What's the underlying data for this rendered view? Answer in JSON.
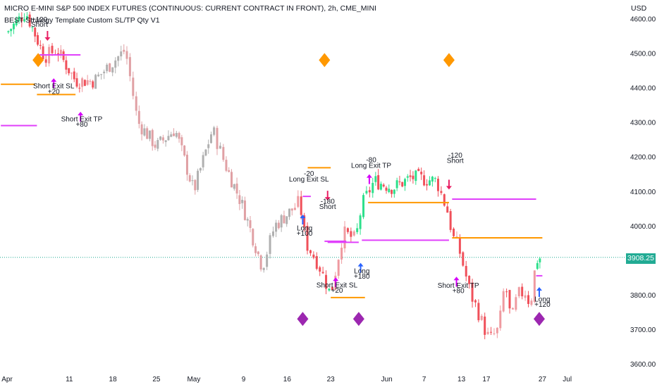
{
  "header": {
    "title": "MICRO E-MINI S&P 500 INDEX FUTURES (CONTINUOUS: CURRENT CONTRACT IN FRONT), 2h, CME_MINI",
    "subtitle": "BEST Strategy Template Custom SL/TP Qty V1",
    "currency": "USD",
    "last_price": "3908.25"
  },
  "colors": {
    "up": "#2ee08c",
    "down": "#f0505a",
    "neutral": "#c8b4b4",
    "sl_line": "#ff9800",
    "tp_line": "#e040fb",
    "entry_arrow_long": "#2962ff",
    "exit_arrow": "#d500f9",
    "short_arrow": "#e91e63",
    "orange_diamond": "#ff9800",
    "purple_diamond": "#9c27b0",
    "price_line": "#22ab94"
  },
  "chart_data": {
    "type": "candlestick",
    "title": "MICRO E-MINI S&P 500 INDEX FUTURES (CONTINUOUS: CURRENT CONTRACT IN FRONT), 2h, CME_MINI",
    "ylim": [
      3580,
      4640
    ],
    "y_ticks": [
      3600,
      3700,
      3800,
      3900,
      4000,
      4100,
      4200,
      4300,
      4400,
      4500,
      4600
    ],
    "y_tick_labels": [
      "3600.00",
      "3700.00",
      "3800.00",
      "3900.00",
      "4000.00",
      "4100.00",
      "4200.00",
      "4300.00",
      "4400.00",
      "4500.00",
      "4600.00"
    ],
    "x_ticks": [
      {
        "day": 0,
        "label": "Apr"
      },
      {
        "day": 10,
        "label": "11"
      },
      {
        "day": 17,
        "label": "18"
      },
      {
        "day": 24,
        "label": "25"
      },
      {
        "day": 30,
        "label": "May"
      },
      {
        "day": 38,
        "label": "9"
      },
      {
        "day": 45,
        "label": "16"
      },
      {
        "day": 52,
        "label": "23"
      },
      {
        "day": 61,
        "label": "Jun"
      },
      {
        "day": 67,
        "label": "7"
      },
      {
        "day": 73,
        "label": "13"
      },
      {
        "day": 77,
        "label": "17"
      },
      {
        "day": 86,
        "label": "27"
      },
      {
        "day": 90,
        "label": "Jul"
      }
    ],
    "last_price": 3908.25,
    "path": [
      [
        0,
        4560,
        "up"
      ],
      [
        3,
        4620,
        "up"
      ],
      [
        6,
        4490,
        "down"
      ],
      [
        8,
        4510,
        "down"
      ],
      [
        11,
        4420,
        "down"
      ],
      [
        14,
        4420,
        "neutral"
      ],
      [
        19,
        4510,
        "neutral"
      ],
      [
        21,
        4300,
        "neutral"
      ],
      [
        24,
        4230,
        "neutral"
      ],
      [
        27,
        4280,
        "neutral"
      ],
      [
        30,
        4100,
        "neutral"
      ],
      [
        33,
        4280,
        "neutral"
      ],
      [
        35,
        4180,
        "neutral"
      ],
      [
        38,
        4050,
        "neutral"
      ],
      [
        41,
        3880,
        "neutral"
      ],
      [
        43,
        4000,
        "neutral"
      ],
      [
        46,
        4050,
        "down"
      ],
      [
        47,
        4070,
        "up"
      ],
      [
        48,
        3950,
        "up"
      ],
      [
        50,
        3890,
        "up"
      ],
      [
        52,
        3800,
        "down"
      ],
      [
        54,
        3980,
        "down"
      ],
      [
        56,
        3960,
        "up"
      ],
      [
        57,
        4060,
        "up"
      ],
      [
        59,
        4130,
        "up"
      ],
      [
        62,
        4110,
        "up"
      ],
      [
        65,
        4140,
        "up"
      ],
      [
        69,
        4130,
        "up"
      ],
      [
        70,
        4080,
        "up"
      ],
      [
        71,
        4030,
        "down"
      ],
      [
        71.5,
        3970,
        "down"
      ],
      [
        72.5,
        3940,
        "down"
      ],
      [
        73.5,
        3870,
        "down"
      ],
      [
        74.5,
        3800,
        "down"
      ],
      [
        75.5,
        3760,
        "down"
      ],
      [
        76.5,
        3710,
        "down"
      ],
      [
        77.5,
        3670,
        "down"
      ],
      [
        79,
        3700,
        "down"
      ],
      [
        80,
        3840,
        "down"
      ],
      [
        81,
        3720,
        "down"
      ],
      [
        82,
        3800,
        "down"
      ],
      [
        83.5,
        3810,
        "down"
      ],
      [
        84,
        3760,
        "down"
      ],
      [
        85,
        3900,
        "up"
      ],
      [
        85.8,
        3908,
        "up"
      ]
    ],
    "segments": [
      {
        "kind": "sl",
        "y": 4410,
        "x0": -1,
        "x1": 4.5
      },
      {
        "kind": "tp",
        "y": 4495,
        "x0": 5.2,
        "x1": 11.8
      },
      {
        "kind": "sl",
        "y": 4380,
        "x0": 4.8,
        "x1": 11
      },
      {
        "kind": "tp",
        "y": 4290,
        "x0": -1,
        "x1": 4.8
      },
      {
        "kind": "sl",
        "y": 4168,
        "x0": 48.3,
        "x1": 52
      },
      {
        "kind": "tp",
        "y": 3952,
        "x0": 51.5,
        "x1": 56.5
      },
      {
        "kind": "tp",
        "y": 3955,
        "x0": 51,
        "x1": 54.5
      },
      {
        "kind": "sl",
        "y": 3792,
        "x0": 52,
        "x1": 57.5
      },
      {
        "kind": "tp",
        "y": 3958,
        "x0": 57,
        "x1": 71
      },
      {
        "kind": "sl",
        "y": 4067,
        "x0": 58,
        "x1": 71
      },
      {
        "kind": "tp",
        "y": 4077,
        "x0": 71.5,
        "x1": 85
      },
      {
        "kind": "sl",
        "y": 3965,
        "x0": 71.5,
        "x1": 86
      },
      {
        "kind": "tp",
        "y": 3855,
        "x0": 85,
        "x1": 86
      },
      {
        "kind": "tp",
        "y": 4085,
        "x0": 47.5,
        "x1": 48.8
      }
    ],
    "markers": [
      {
        "kind": "diamond_orange",
        "day": 5,
        "price": 4480
      },
      {
        "kind": "diamond_orange",
        "day": 51,
        "price": 4480
      },
      {
        "kind": "diamond_orange",
        "day": 71,
        "price": 4480
      },
      {
        "kind": "diamond_purple",
        "day": 47.5,
        "price": 3730
      },
      {
        "kind": "diamond_purple",
        "day": 56.5,
        "price": 3730
      },
      {
        "kind": "diamond_purple",
        "day": 85.5,
        "price": 3730
      },
      {
        "kind": "arrow_short",
        "day": 6.5,
        "price": 4548
      },
      {
        "kind": "arrow_exit",
        "day": 7.5,
        "price": 4415
      },
      {
        "kind": "arrow_exit",
        "day": 11.8,
        "price": 4318
      },
      {
        "kind": "arrow_long",
        "day": 47.5,
        "price": 4020
      },
      {
        "kind": "arrow_short",
        "day": 51.5,
        "price": 4085
      },
      {
        "kind": "arrow_exit",
        "day": 52.8,
        "price": 3838
      },
      {
        "kind": "arrow_long",
        "day": 56.8,
        "price": 3880
      },
      {
        "kind": "arrow_exit",
        "day": 58.2,
        "price": 4137
      },
      {
        "kind": "arrow_short",
        "day": 71,
        "price": 4117
      },
      {
        "kind": "arrow_exit",
        "day": 72.2,
        "price": 3840
      },
      {
        "kind": "arrow_long",
        "day": 85.5,
        "price": 3810
      }
    ],
    "labels": [
      {
        "text": "+120",
        "day": 5.2,
        "price": 4591
      },
      {
        "text": "Short",
        "day": 5.2,
        "price": 4577
      },
      {
        "text": "Short Exit SL",
        "day": 7.5,
        "price": 4398
      },
      {
        "text": "+20",
        "day": 7.5,
        "price": 4382
      },
      {
        "text": "Short Exit TP",
        "day": 12,
        "price": 4302
      },
      {
        "text": "+80",
        "day": 12,
        "price": 4287
      },
      {
        "text": "-20",
        "day": 48.5,
        "price": 4144
      },
      {
        "text": "Long Exit SL",
        "day": 48.5,
        "price": 4128
      },
      {
        "text": "-180",
        "day": 51.5,
        "price": 4064
      },
      {
        "text": "Short",
        "day": 51.5,
        "price": 4049
      },
      {
        "text": "Long",
        "day": 47.8,
        "price": 3986
      },
      {
        "text": "+100",
        "day": 47.8,
        "price": 3971
      },
      {
        "text": "Long",
        "day": 57,
        "price": 3862
      },
      {
        "text": "+180",
        "day": 57,
        "price": 3847
      },
      {
        "text": "Short Exit SL",
        "day": 53,
        "price": 3821
      },
      {
        "text": "+20",
        "day": 53,
        "price": 3806
      },
      {
        "text": "-80",
        "day": 58.5,
        "price": 4184
      },
      {
        "text": "Long Exit TP",
        "day": 58.5,
        "price": 4168
      },
      {
        "text": "-120",
        "day": 72,
        "price": 4197
      },
      {
        "text": "Short",
        "day": 72,
        "price": 4182
      },
      {
        "text": "Short Exit TP",
        "day": 72.5,
        "price": 3820
      },
      {
        "text": "+80",
        "day": 72.5,
        "price": 3805
      },
      {
        "text": "Long",
        "day": 86,
        "price": 3780
      },
      {
        "text": "+120",
        "day": 86,
        "price": 3765
      }
    ]
  }
}
